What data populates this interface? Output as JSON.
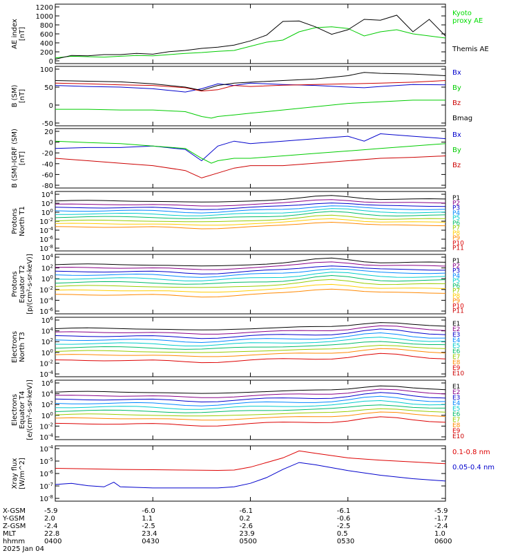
{
  "chart_data": {
    "type": "line",
    "time_labels": [
      "0400",
      "0430",
      "0500",
      "0530",
      "0600"
    ],
    "footer": {
      "rows": [
        {
          "label": "X-GSM",
          "values": [
            "-5.9",
            "-6.0",
            "-6.1",
            "-6.1",
            "-5.9"
          ]
        },
        {
          "label": "Y-GSM",
          "values": [
            "2.0",
            "1.1",
            "0.2",
            "-0.6",
            "-1.7"
          ]
        },
        {
          "label": "Z-GSM",
          "values": [
            "-2.4",
            "-2.5",
            "-2.6",
            "-2.5",
            "-2.4"
          ]
        },
        {
          "label": "MLT",
          "values": [
            "22.8",
            "23.4",
            "23.9",
            "0.5",
            "1.0"
          ]
        },
        {
          "label": "hhmm",
          "values": [
            "0400",
            "0430",
            "0500",
            "0530",
            "0600"
          ]
        }
      ],
      "date": "2025 Jan 04"
    },
    "panels": [
      {
        "id": "ae",
        "ylabel": [
          "AE index",
          "[nT]"
        ],
        "ticks": [
          "1200",
          "1000",
          "800",
          "600",
          "400",
          "200",
          "0"
        ],
        "legend": [
          {
            "text": "Kyoto",
            "color": "#00dd00"
          },
          {
            "text": "proxy AE",
            "color": "#00dd00"
          },
          {
            "text": "Themis AE",
            "color": "#000000"
          }
        ],
        "ylim": [
          0,
          1300
        ],
        "series": [
          {
            "name": "Kyoto proxy AE",
            "color": "#00cc00",
            "x": [
              0,
              5,
              10,
              15,
              20,
              25,
              30,
              35,
              40,
              45,
              50,
              55,
              60,
              65,
              70,
              75,
              80,
              85,
              90,
              95,
              100,
              105,
              110,
              115,
              120
            ],
            "y": [
              70,
              110,
              100,
              90,
              110,
              130,
              120,
              150,
              180,
              200,
              230,
              250,
              350,
              450,
              500,
              700,
              800,
              820,
              780,
              600,
              700,
              750,
              650,
              600,
              550
            ]
          },
          {
            "name": "Themis AE",
            "color": "#000000",
            "x": [
              0,
              5,
              10,
              15,
              20,
              25,
              30,
              35,
              40,
              45,
              50,
              55,
              60,
              65,
              70,
              75,
              80,
              85,
              90,
              95,
              100,
              105,
              110,
              115,
              120
            ],
            "y": [
              40,
              130,
              120,
              150,
              150,
              180,
              160,
              220,
              250,
              300,
              330,
              380,
              480,
              620,
              950,
              960,
              820,
              640,
              750,
              1000,
              980,
              1100,
              700,
              1000,
              600
            ]
          }
        ]
      },
      {
        "id": "bsm",
        "ylabel": [
          "B (SM)",
          "[nT]"
        ],
        "ticks": [
          "100",
          "50",
          "0",
          "-50"
        ],
        "legend": [
          {
            "text": "Bx",
            "color": "#0000cc"
          },
          {
            "text": "By",
            "color": "#00cc00"
          },
          {
            "text": "Bz",
            "color": "#cc0000"
          },
          {
            "text": "Bmag",
            "color": "#000000"
          }
        ],
        "ylim": [
          -60,
          105
        ],
        "series": [
          {
            "name": "Bx",
            "color": "#0000cc",
            "x": [
              0,
              10,
              20,
              30,
              40,
              45,
              50,
              55,
              60,
              70,
              80,
              90,
              95,
              100,
              110,
              120
            ],
            "y": [
              55,
              52,
              50,
              45,
              35,
              45,
              60,
              55,
              62,
              58,
              55,
              50,
              48,
              52,
              58,
              57
            ]
          },
          {
            "name": "By",
            "color": "#00cc00",
            "x": [
              0,
              10,
              20,
              30,
              40,
              45,
              48,
              50,
              55,
              60,
              70,
              80,
              90,
              100,
              110,
              120
            ],
            "y": [
              -18,
              -18,
              -20,
              -20,
              -25,
              -40,
              -45,
              -40,
              -35,
              -30,
              -20,
              -10,
              0,
              5,
              10,
              10
            ]
          },
          {
            "name": "Bz",
            "color": "#cc0000",
            "x": [
              0,
              10,
              20,
              30,
              40,
              45,
              50,
              55,
              60,
              70,
              80,
              90,
              100,
              110,
              120
            ],
            "y": [
              62,
              60,
              57,
              55,
              48,
              38,
              42,
              55,
              52,
              56,
              58,
              60,
              62,
              65,
              70
            ]
          },
          {
            "name": "Bmag",
            "color": "#000000",
            "x": [
              0,
              10,
              20,
              30,
              40,
              45,
              50,
              55,
              60,
              70,
              80,
              90,
              95,
              100,
              110,
              120
            ],
            "y": [
              70,
              68,
              66,
              60,
              50,
              40,
              55,
              62,
              65,
              70,
              75,
              85,
              95,
              92,
              90,
              85
            ]
          }
        ]
      },
      {
        "id": "bigrf",
        "ylabel": [
          "B (SM)-IGRF (SM)",
          "[nT]"
        ],
        "ticks": [
          "20",
          "0",
          "-20",
          "-40",
          "-60",
          "-80"
        ],
        "legend": [
          {
            "text": "Bx",
            "color": "#0000cc"
          },
          {
            "text": "By",
            "color": "#00cc00"
          },
          {
            "text": "Bz",
            "color": "#cc0000"
          }
        ],
        "ylim": [
          -85,
          25
        ],
        "series": [
          {
            "name": "Bx",
            "color": "#0000cc",
            "x": [
              0,
              10,
              20,
              30,
              40,
              45,
              50,
              55,
              60,
              70,
              80,
              90,
              95,
              100,
              110,
              120
            ],
            "y": [
              -10,
              -8,
              -8,
              -5,
              -12,
              -35,
              -5,
              5,
              0,
              5,
              10,
              15,
              5,
              20,
              15,
              10
            ]
          },
          {
            "name": "By",
            "color": "#00cc00",
            "x": [
              0,
              10,
              20,
              30,
              40,
              45,
              48,
              50,
              55,
              60,
              70,
              80,
              90,
              100,
              110,
              120
            ],
            "y": [
              5,
              2,
              0,
              -5,
              -10,
              -30,
              -40,
              -35,
              -30,
              -30,
              -25,
              -20,
              -15,
              -10,
              -5,
              0
            ]
          },
          {
            "name": "Bz",
            "color": "#cc0000",
            "x": [
              0,
              10,
              20,
              30,
              40,
              45,
              50,
              55,
              60,
              70,
              80,
              90,
              100,
              110,
              120
            ],
            "y": [
              -30,
              -35,
              -40,
              -45,
              -55,
              -70,
              -60,
              -50,
              -45,
              -45,
              -40,
              -35,
              -30,
              -28,
              -25
            ]
          }
        ]
      },
      {
        "id": "pn",
        "ylabel": [
          "Protons",
          "North T1"
        ],
        "ticks": [
          "10^4",
          "10^2",
          "10^0",
          "10^-2",
          "10^-4",
          "10^-6",
          "10^-8"
        ],
        "log": [
          -8,
          4
        ],
        "legend": [
          {
            "text": "P1",
            "color": "#000000"
          },
          {
            "text": "P2",
            "color": "#880088"
          },
          {
            "text": "P3",
            "color": "#0000cc"
          },
          {
            "text": "P4",
            "color": "#0088ff"
          },
          {
            "text": "P5",
            "color": "#00cccc"
          },
          {
            "text": "P6",
            "color": "#00bb66"
          },
          {
            "text": "P7",
            "color": "#99cc00"
          },
          {
            "text": "P8",
            "color": "#ffcc00"
          },
          {
            "text": "P9",
            "color": "#ff8800"
          },
          {
            "text": "P10",
            "color": "#dd0000"
          },
          {
            "text": "P11",
            "color": "#cc0000"
          }
        ],
        "bands": [
          2.5,
          1.7,
          1.0,
          0.3,
          -0.4,
          -1.1,
          -1.9,
          -2.6,
          -3.3
        ]
      },
      {
        "id": "pe",
        "ylabel": [
          "Protons",
          "Equator T2",
          "[p/(cm²-s-sr-keV)]"
        ],
        "ticks": [
          "10^4",
          "10^2",
          "10^0",
          "10^-2",
          "10^-4",
          "10^-6"
        ],
        "log": [
          -6,
          4
        ],
        "legend": [
          {
            "text": "P1",
            "color": "#000000"
          },
          {
            "text": "P2",
            "color": "#880088"
          },
          {
            "text": "P3",
            "color": "#0000cc"
          },
          {
            "text": "P4",
            "color": "#0088ff"
          },
          {
            "text": "P5",
            "color": "#00cccc"
          },
          {
            "text": "P6",
            "color": "#00bb66"
          },
          {
            "text": "P7",
            "color": "#99cc00"
          },
          {
            "text": "P8",
            "color": "#ffcc00"
          },
          {
            "text": "P9",
            "color": "#ff8800"
          },
          {
            "text": "P10",
            "color": "#dd0000"
          },
          {
            "text": "P11",
            "color": "#cc0000"
          }
        ],
        "bands": [
          2.6,
          2.0,
          1.3,
          0.7,
          0.0,
          -0.7,
          -1.4,
          -2.2,
          -3.0
        ]
      },
      {
        "id": "en",
        "ylabel": [
          "Electrons",
          "North T3"
        ],
        "ticks": [
          "10^6",
          "10^4",
          "10^2",
          "10^0",
          "10^-2",
          "10^-4"
        ],
        "log": [
          -4,
          6
        ],
        "legend": [
          {
            "text": "E1",
            "color": "#000000"
          },
          {
            "text": "E2",
            "color": "#880088"
          },
          {
            "text": "E3",
            "color": "#0000cc"
          },
          {
            "text": "E4",
            "color": "#0088ff"
          },
          {
            "text": "E5",
            "color": "#00cccc"
          },
          {
            "text": "E6",
            "color": "#00bb66"
          },
          {
            "text": "E7",
            "color": "#99cc00"
          },
          {
            "text": "E8",
            "color": "#ff8800"
          },
          {
            "text": "E9",
            "color": "#dd0000"
          },
          {
            "text": "E10",
            "color": "#cc0000"
          }
        ],
        "bands": [
          4.4,
          3.7,
          3.0,
          2.3,
          1.6,
          0.9,
          0.2,
          -0.5,
          -1.5
        ]
      },
      {
        "id": "ee",
        "ylabel": [
          "Electrons",
          "Equator T4",
          "[e/(cm²-s-sr-keV)]"
        ],
        "ticks": [
          "10^6",
          "10^4",
          "10^2",
          "10^0",
          "10^-2",
          "10^-4"
        ],
        "log": [
          -4,
          6
        ],
        "legend": [
          {
            "text": "E1",
            "color": "#000000"
          },
          {
            "text": "E2",
            "color": "#880088"
          },
          {
            "text": "E3",
            "color": "#0000cc"
          },
          {
            "text": "E4",
            "color": "#0088ff"
          },
          {
            "text": "E5",
            "color": "#00cccc"
          },
          {
            "text": "E6",
            "color": "#00bb66"
          },
          {
            "text": "E7",
            "color": "#99cc00"
          },
          {
            "text": "E8",
            "color": "#ff8800"
          },
          {
            "text": "E9",
            "color": "#dd0000"
          },
          {
            "text": "E10",
            "color": "#cc0000"
          }
        ],
        "bands": [
          4.3,
          3.6,
          2.9,
          2.2,
          1.5,
          0.8,
          0.1,
          -0.6,
          -1.6
        ]
      },
      {
        "id": "xray",
        "ylabel": [
          "Xray flux",
          "[W/m^2]"
        ],
        "ticks": [
          "10^-4",
          "10^-5",
          "10^-6",
          "10^-7",
          "10^-8"
        ],
        "log": [
          -8.3,
          -4
        ],
        "legend": [
          {
            "text": "0.1-0.8 nm",
            "color": "#dd0000"
          },
          {
            "text": "0.05-0.4 nm",
            "color": "#0000cc"
          }
        ],
        "series": [
          {
            "name": "0.1-0.8 nm",
            "color": "#dd0000",
            "x": [
              0,
              10,
              20,
              30,
              40,
              50,
              55,
              60,
              65,
              70,
              75,
              80,
              90,
              100,
              110,
              120
            ],
            "y": [
              -5.7,
              -5.75,
              -5.8,
              -5.82,
              -5.85,
              -5.88,
              -5.85,
              -5.6,
              -5.2,
              -4.8,
              -4.2,
              -4.4,
              -4.8,
              -5.0,
              -5.15,
              -5.3
            ]
          },
          {
            "name": "0.05-0.4 nm",
            "color": "#0000cc",
            "x": [
              0,
              5,
              10,
              15,
              18,
              20,
              30,
              40,
              50,
              55,
              60,
              65,
              70,
              75,
              80,
              90,
              100,
              110,
              120
            ],
            "y": [
              -7.1,
              -7.0,
              -7.2,
              -7.3,
              -6.9,
              -7.3,
              -7.4,
              -7.4,
              -7.4,
              -7.3,
              -7.0,
              -6.5,
              -5.8,
              -5.2,
              -5.4,
              -5.9,
              -6.3,
              -6.6,
              -6.8
            ]
          }
        ]
      }
    ]
  }
}
